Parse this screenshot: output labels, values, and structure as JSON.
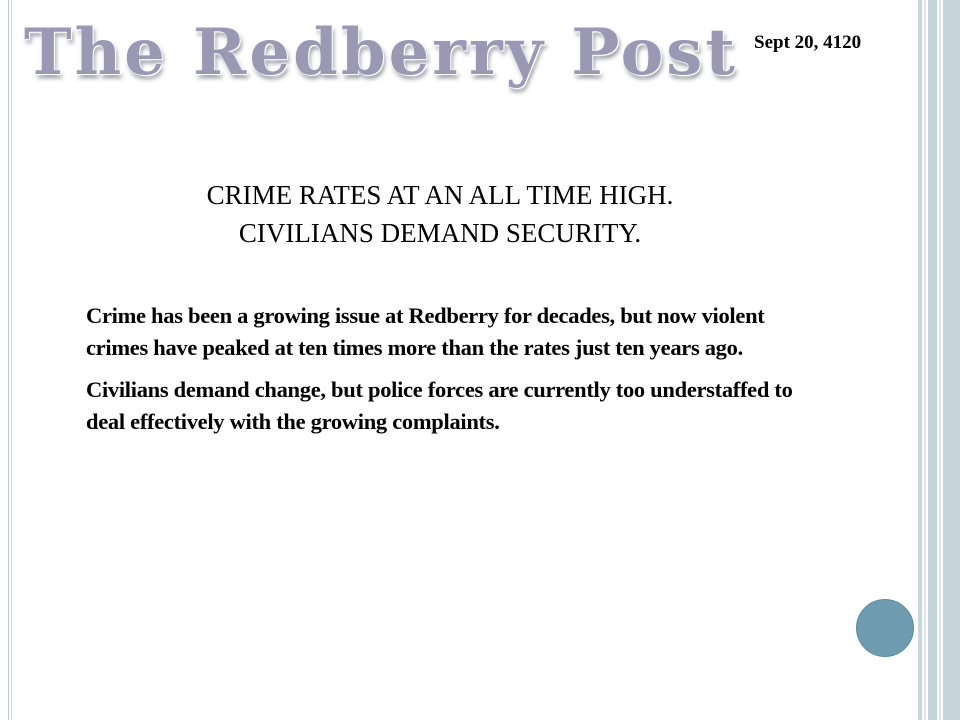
{
  "masthead": {
    "title": "The Redberry Post",
    "date": "Sept 20, 4120"
  },
  "article": {
    "headline_lines": [
      "CRIME RATES AT AN ALL TIME HIGH.",
      "CIVILIANS DEMAND SECURITY."
    ],
    "paragraphs": [
      "Crime has been a growing issue at Redberry for decades, but now violent crimes have peaked at ten times more than the rates just ten years ago.",
      "Civilians demand change, but police forces are currently too understaffed to deal effectively with the growing complaints."
    ]
  },
  "colors": {
    "masthead": "#9a98b3",
    "accent_circle": "#6f9cb0",
    "frame": "#c6d5dc"
  }
}
